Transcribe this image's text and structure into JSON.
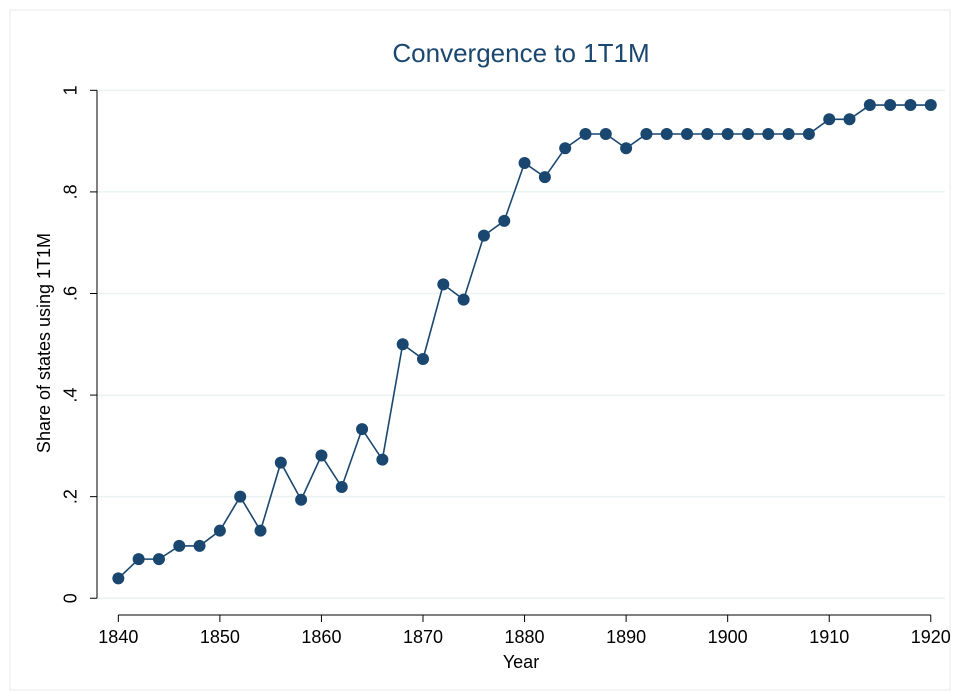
{
  "chart_data": {
    "type": "line",
    "title": "Convergence to 1T1M",
    "x_label": "Year",
    "y_label": "Share of states using 1T1M",
    "x": [
      1840,
      1842,
      1844,
      1846,
      1848,
      1850,
      1852,
      1854,
      1856,
      1858,
      1860,
      1862,
      1864,
      1866,
      1868,
      1870,
      1872,
      1874,
      1876,
      1878,
      1880,
      1882,
      1884,
      1886,
      1888,
      1890,
      1892,
      1894,
      1896,
      1898,
      1900,
      1902,
      1904,
      1906,
      1908,
      1910,
      1912,
      1914,
      1916,
      1918,
      1920
    ],
    "series": [
      {
        "name": "Share of states using 1T1M",
        "color": "#1a476f",
        "values": [
          0.039,
          0.077,
          0.077,
          0.103,
          0.103,
          0.133,
          0.2,
          0.133,
          0.267,
          0.194,
          0.281,
          0.219,
          0.333,
          0.273,
          0.5,
          0.471,
          0.618,
          0.588,
          0.714,
          0.743,
          0.857,
          0.829,
          0.886,
          0.914,
          0.914,
          0.886,
          0.914,
          0.914,
          0.914,
          0.914,
          0.914,
          0.914,
          0.914,
          0.914,
          0.914,
          0.943,
          0.943,
          0.971,
          0.971,
          0.971,
          0.971
        ]
      }
    ],
    "xlim": [
      1837.9,
      1921.4
    ],
    "ylim": [
      -0.033,
      1.04
    ],
    "xticks": [
      1840,
      1850,
      1860,
      1870,
      1880,
      1890,
      1900,
      1910,
      1920
    ],
    "yticks": [
      0,
      {
        "value": 0.2,
        "label": ".2"
      },
      {
        "value": 0.4,
        "label": ".4"
      },
      {
        "value": 0.6,
        "label": ".6"
      },
      {
        "value": 0.8,
        "label": ".8"
      },
      1
    ],
    "grid": true
  }
}
